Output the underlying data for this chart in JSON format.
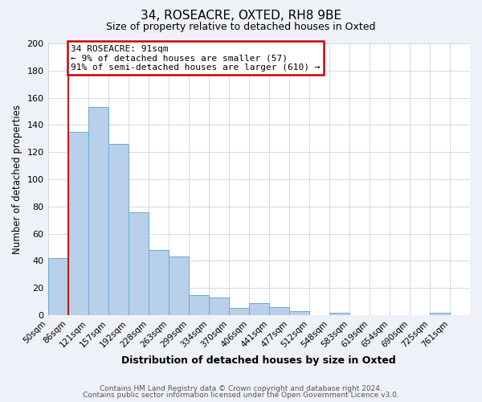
{
  "title": "34, ROSEACRE, OXTED, RH8 9BE",
  "subtitle": "Size of property relative to detached houses in Oxted",
  "xlabel": "Distribution of detached houses by size in Oxted",
  "ylabel": "Number of detached properties",
  "bin_labels": [
    "50sqm",
    "86sqm",
    "121sqm",
    "157sqm",
    "192sqm",
    "228sqm",
    "263sqm",
    "299sqm",
    "334sqm",
    "370sqm",
    "406sqm",
    "441sqm",
    "477sqm",
    "512sqm",
    "548sqm",
    "583sqm",
    "619sqm",
    "654sqm",
    "690sqm",
    "725sqm",
    "761sqm"
  ],
  "bar_values": [
    42,
    135,
    153,
    126,
    76,
    48,
    43,
    15,
    13,
    5,
    9,
    6,
    3,
    0,
    2,
    0,
    0,
    0,
    0,
    2,
    0
  ],
  "bar_color": "#b8d0ea",
  "bar_edgecolor": "#6aaad4",
  "grid_color": "#c8d4e8",
  "plot_bg_color": "#ffffff",
  "fig_bg_color": "#eef2f8",
  "vline_color": "#cc0000",
  "annotation_text": "34 ROSEACRE: 91sqm\n← 9% of detached houses are smaller (57)\n91% of semi-detached houses are larger (610) →",
  "annotation_box_edgecolor": "#cc0000",
  "annotation_box_facecolor": "#ffffff",
  "ylim": [
    0,
    200
  ],
  "yticks": [
    0,
    20,
    40,
    60,
    80,
    100,
    120,
    140,
    160,
    180,
    200
  ],
  "footer_line1": "Contains HM Land Registry data © Crown copyright and database right 2024.",
  "footer_line2": "Contains public sector information licensed under the Open Government Licence v3.0."
}
